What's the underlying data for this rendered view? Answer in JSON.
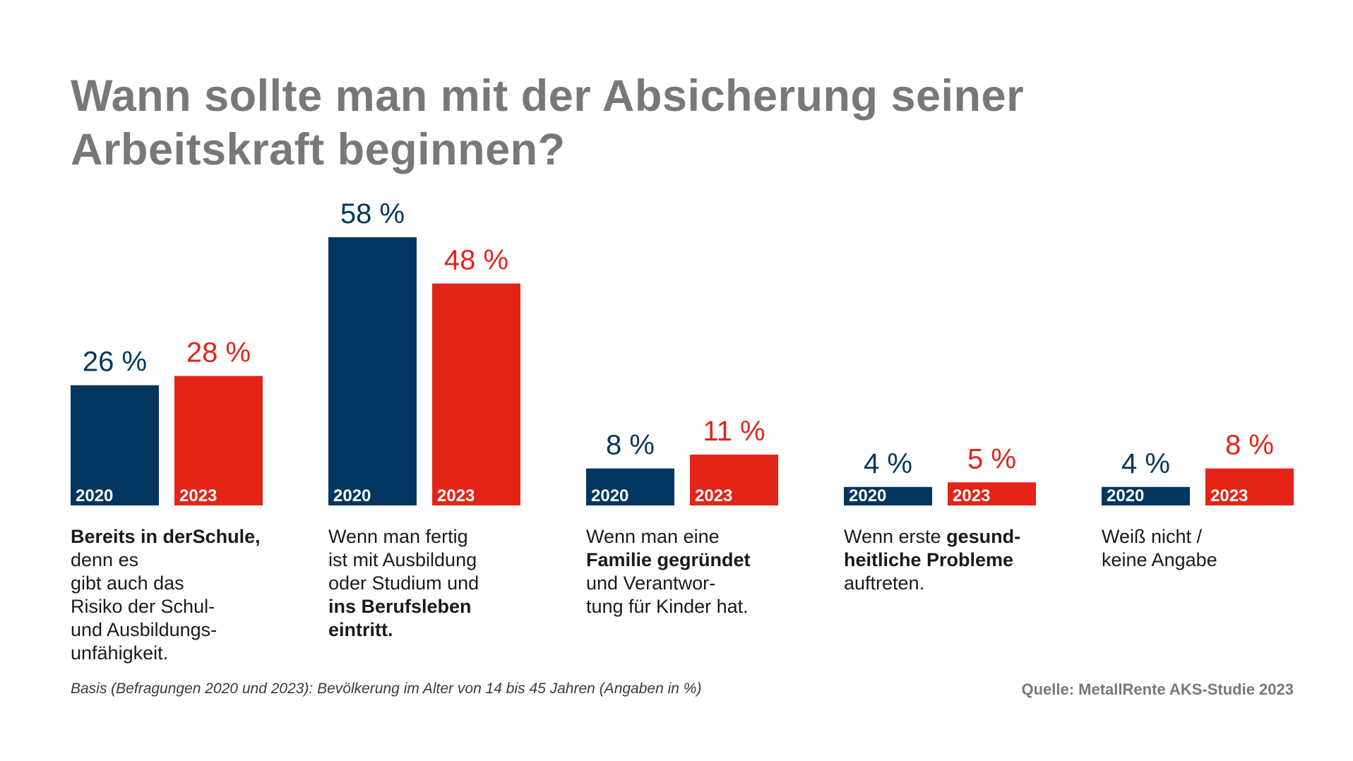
{
  "title": "Wann sollte man mit der Absicherung seiner Arbeitskraft beginnen?",
  "footnote": "Basis (Befragungen 2020 und 2023): Bevölkerung im Alter von 14 bis 45 Jahren (Angaben in %)",
  "source": "Quelle: MetallRente AKS-Studie 2023",
  "colors": {
    "series_2020": "#02365e",
    "series_2023": "#e32417",
    "title": "#7a7877"
  },
  "chart_data": {
    "type": "bar",
    "title": "Wann sollte man mit der Absicherung seiner Arbeitskraft beginnen?",
    "categories": [
      "Bereits in der Schule, denn es gibt auch das Risiko der Schul- und Ausbildungsunfähigkeit.",
      "Wenn man fertig ist mit Ausbildung oder Studium und ins Berufsleben eintritt.",
      "Wenn man eine Familie gegründet und Verantwortung für Kinder hat.",
      "Wenn erste gesundheitliche Probleme auftreten.",
      "Weiß nicht / keine Angabe"
    ],
    "series": [
      {
        "name": "2020",
        "values": [
          26,
          58,
          8,
          4,
          4
        ],
        "labels": [
          "26 %",
          "58 %",
          "8 %",
          "4 %",
          "4 %"
        ]
      },
      {
        "name": "2023",
        "values": [
          28,
          48,
          11,
          5,
          8
        ],
        "labels": [
          "28 %",
          "48 %",
          "11 %",
          "5 %",
          "8 %"
        ]
      }
    ],
    "unit": "%",
    "grid": false,
    "legend": "inside bars"
  },
  "category_labels": [
    [
      {
        "t": "Bereits in der",
        "b": true
      },
      {
        "t": "Schule,",
        "b": true
      },
      {
        "t": " denn es",
        "b": false
      },
      {
        "br": true
      },
      {
        "t": "gibt auch das",
        "b": false
      },
      {
        "br": true
      },
      {
        "t": "Risiko der Schul-",
        "b": false
      },
      {
        "br": true
      },
      {
        "t": "und Ausbildungs-",
        "b": false
      },
      {
        "br": true
      },
      {
        "t": "unfähigkeit.",
        "b": false
      }
    ],
    [
      {
        "t": "Wenn man fertig",
        "b": false
      },
      {
        "br": true
      },
      {
        "t": "ist mit Ausbildung",
        "b": false
      },
      {
        "br": true
      },
      {
        "t": "oder Studium und",
        "b": false
      },
      {
        "br": true
      },
      {
        "t": "ins Berufsleben",
        "b": true
      },
      {
        "br": true
      },
      {
        "t": "eintritt.",
        "b": true
      }
    ],
    [
      {
        "t": "Wenn man eine",
        "b": false
      },
      {
        "br": true
      },
      {
        "t": "Familie gegründet",
        "b": true
      },
      {
        "br": true
      },
      {
        "t": "und Verantwor-",
        "b": false
      },
      {
        "br": true
      },
      {
        "t": "tung für Kinder hat.",
        "b": false
      }
    ],
    [
      {
        "t": "Wenn erste ",
        "b": false
      },
      {
        "t": "gesund-",
        "b": true
      },
      {
        "br": true
      },
      {
        "t": "heitliche Probleme",
        "b": true
      },
      {
        "br": true
      },
      {
        "t": "auftreten.",
        "b": false
      }
    ],
    [
      {
        "t": "Weiß nicht /",
        "b": false
      },
      {
        "br": true
      },
      {
        "t": "keine Angabe",
        "b": false
      }
    ]
  ]
}
